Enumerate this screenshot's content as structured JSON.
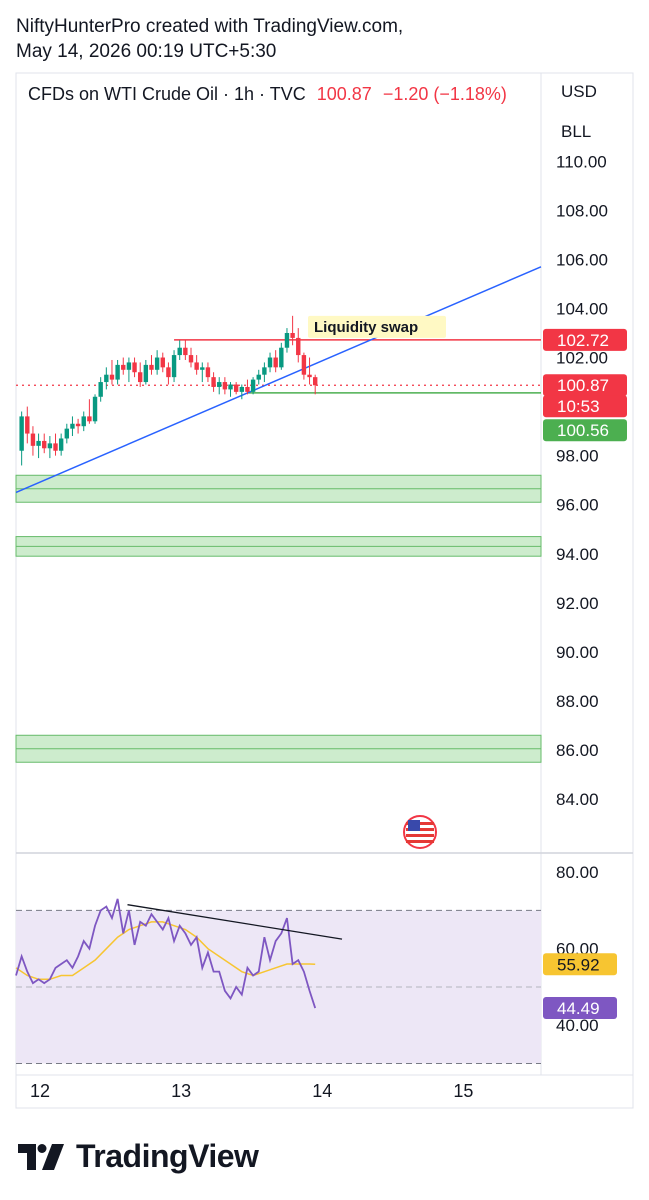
{
  "header": {
    "line1": "NiftyHunterPro created with TradingView.com,",
    "line2": "May 14, 2026 00:19 UTC+5:30"
  },
  "symbol": {
    "name": "CFDs on WTI Crude Oil · 1h · TVC",
    "price": "100.87",
    "change": "−1.20 (−1.18%)"
  },
  "currency": {
    "code": "USD",
    "unit": "BLL"
  },
  "footer": {
    "brand": "TradingView"
  },
  "colors": {
    "up": "#089981",
    "down": "#f23645",
    "trend": "#2962ff",
    "zone_fill": "#cdeccd",
    "zone_line": "#66bb6a",
    "rsi": "#7e57c2",
    "rsi_ma": "#f7c531",
    "rsi_band": "#ede7f6"
  },
  "chart_data": [
    {
      "type": "candlestick",
      "title": "CFDs on WTI Crude Oil · 1h · TVC",
      "y_ticks": [
        "110.00",
        "108.00",
        "106.00",
        "104.00",
        "102.00",
        "98.00",
        "96.00",
        "94.00",
        "92.00",
        "90.00",
        "88.00",
        "86.00",
        "84.00"
      ],
      "ylim": [
        81.8,
        113.6
      ],
      "x_ticks": [
        "12",
        "13",
        "14",
        "15"
      ],
      "x_tick_values": [
        12,
        13,
        14,
        15
      ],
      "xlim": [
        11.83,
        15.55
      ],
      "candles": [
        {
          "x": 11.87,
          "o": 98.2,
          "h": 99.8,
          "l": 97.6,
          "c": 99.6
        },
        {
          "x": 11.91,
          "o": 99.6,
          "h": 100.0,
          "l": 98.5,
          "c": 98.9
        },
        {
          "x": 11.95,
          "o": 98.9,
          "h": 99.2,
          "l": 98.0,
          "c": 98.4
        },
        {
          "x": 11.99,
          "o": 98.4,
          "h": 98.9,
          "l": 97.9,
          "c": 98.6
        },
        {
          "x": 12.03,
          "o": 98.6,
          "h": 98.9,
          "l": 98.1,
          "c": 98.3
        },
        {
          "x": 12.07,
          "o": 98.3,
          "h": 98.8,
          "l": 97.9,
          "c": 98.5
        },
        {
          "x": 12.11,
          "o": 98.5,
          "h": 98.9,
          "l": 98.0,
          "c": 98.2
        },
        {
          "x": 12.15,
          "o": 98.2,
          "h": 98.9,
          "l": 98.0,
          "c": 98.7
        },
        {
          "x": 12.19,
          "o": 98.7,
          "h": 99.3,
          "l": 98.5,
          "c": 99.1
        },
        {
          "x": 12.23,
          "o": 99.1,
          "h": 99.6,
          "l": 98.8,
          "c": 99.3
        },
        {
          "x": 12.27,
          "o": 99.3,
          "h": 99.5,
          "l": 98.9,
          "c": 99.2
        },
        {
          "x": 12.31,
          "o": 99.2,
          "h": 99.8,
          "l": 99.0,
          "c": 99.6
        },
        {
          "x": 12.35,
          "o": 99.6,
          "h": 100.3,
          "l": 99.3,
          "c": 99.4
        },
        {
          "x": 12.39,
          "o": 99.4,
          "h": 100.5,
          "l": 99.3,
          "c": 100.4
        },
        {
          "x": 12.43,
          "o": 100.4,
          "h": 101.2,
          "l": 100.2,
          "c": 101.0
        },
        {
          "x": 12.47,
          "o": 101.0,
          "h": 101.6,
          "l": 100.7,
          "c": 101.3
        },
        {
          "x": 12.51,
          "o": 101.3,
          "h": 101.9,
          "l": 100.9,
          "c": 101.1
        },
        {
          "x": 12.55,
          "o": 101.1,
          "h": 101.9,
          "l": 100.9,
          "c": 101.7
        },
        {
          "x": 12.59,
          "o": 101.7,
          "h": 102.0,
          "l": 101.3,
          "c": 101.5
        },
        {
          "x": 12.63,
          "o": 101.5,
          "h": 102.0,
          "l": 101.0,
          "c": 101.8
        },
        {
          "x": 12.67,
          "o": 101.8,
          "h": 102.0,
          "l": 101.2,
          "c": 101.4
        },
        {
          "x": 12.71,
          "o": 101.4,
          "h": 101.8,
          "l": 100.8,
          "c": 101.0
        },
        {
          "x": 12.75,
          "o": 101.0,
          "h": 101.9,
          "l": 100.9,
          "c": 101.7
        },
        {
          "x": 12.79,
          "o": 101.7,
          "h": 102.1,
          "l": 101.3,
          "c": 101.5
        },
        {
          "x": 12.83,
          "o": 101.5,
          "h": 102.3,
          "l": 101.3,
          "c": 102.0
        },
        {
          "x": 12.87,
          "o": 102.0,
          "h": 102.2,
          "l": 101.4,
          "c": 101.6
        },
        {
          "x": 12.91,
          "o": 101.6,
          "h": 101.8,
          "l": 100.9,
          "c": 101.2
        },
        {
          "x": 12.95,
          "o": 101.2,
          "h": 102.3,
          "l": 101.0,
          "c": 102.1
        },
        {
          "x": 12.99,
          "o": 102.1,
          "h": 102.7,
          "l": 101.9,
          "c": 102.4
        },
        {
          "x": 13.03,
          "o": 102.4,
          "h": 102.7,
          "l": 101.9,
          "c": 102.1
        },
        {
          "x": 13.07,
          "o": 102.1,
          "h": 102.4,
          "l": 101.6,
          "c": 101.8
        },
        {
          "x": 13.11,
          "o": 101.8,
          "h": 102.1,
          "l": 101.3,
          "c": 101.5
        },
        {
          "x": 13.15,
          "o": 101.5,
          "h": 101.8,
          "l": 101.0,
          "c": 101.6
        },
        {
          "x": 13.19,
          "o": 101.6,
          "h": 101.8,
          "l": 101.0,
          "c": 101.2
        },
        {
          "x": 13.23,
          "o": 101.2,
          "h": 101.4,
          "l": 100.6,
          "c": 100.8
        },
        {
          "x": 13.27,
          "o": 100.8,
          "h": 101.2,
          "l": 100.5,
          "c": 101.0
        },
        {
          "x": 13.31,
          "o": 101.0,
          "h": 101.2,
          "l": 100.5,
          "c": 100.7
        },
        {
          "x": 13.35,
          "o": 100.7,
          "h": 101.0,
          "l": 100.4,
          "c": 100.9
        },
        {
          "x": 13.39,
          "o": 100.9,
          "h": 101.0,
          "l": 100.5,
          "c": 100.6
        },
        {
          "x": 13.43,
          "o": 100.6,
          "h": 100.9,
          "l": 100.3,
          "c": 100.8
        },
        {
          "x": 13.47,
          "o": 100.8,
          "h": 101.1,
          "l": 100.5,
          "c": 100.6
        },
        {
          "x": 13.51,
          "o": 100.6,
          "h": 101.2,
          "l": 100.5,
          "c": 101.1
        },
        {
          "x": 13.55,
          "o": 101.1,
          "h": 101.5,
          "l": 100.9,
          "c": 101.3
        },
        {
          "x": 13.59,
          "o": 101.3,
          "h": 101.8,
          "l": 101.0,
          "c": 101.6
        },
        {
          "x": 13.63,
          "o": 101.6,
          "h": 102.2,
          "l": 101.4,
          "c": 102.0
        },
        {
          "x": 13.67,
          "o": 102.0,
          "h": 102.3,
          "l": 101.4,
          "c": 101.6
        },
        {
          "x": 13.71,
          "o": 101.6,
          "h": 102.6,
          "l": 101.5,
          "c": 102.4
        },
        {
          "x": 13.75,
          "o": 102.4,
          "h": 103.2,
          "l": 102.2,
          "c": 103.0
        },
        {
          "x": 13.79,
          "o": 103.0,
          "h": 103.7,
          "l": 102.5,
          "c": 102.8
        },
        {
          "x": 13.83,
          "o": 102.8,
          "h": 103.2,
          "l": 101.8,
          "c": 102.1
        },
        {
          "x": 13.87,
          "o": 102.1,
          "h": 102.2,
          "l": 101.1,
          "c": 101.3
        },
        {
          "x": 13.91,
          "o": 101.3,
          "h": 102.0,
          "l": 100.9,
          "c": 101.2
        },
        {
          "x": 13.95,
          "o": 101.2,
          "h": 101.3,
          "l": 100.5,
          "c": 100.87
        }
      ],
      "trendline": {
        "x": [
          11.83,
          15.55
        ],
        "y": [
          96.5,
          105.7
        ]
      },
      "resistance": {
        "value": 102.72,
        "x_start": 12.95,
        "annotation": "Liquidity swap"
      },
      "support": {
        "value": 100.56,
        "x_start": 13.47
      },
      "last_price": 100.87,
      "demand_zones": [
        [
          96.1,
          97.2
        ],
        [
          93.9,
          94.7
        ],
        [
          85.5,
          86.6
        ]
      ],
      "price_labels": [
        {
          "text": "102.72",
          "value": 102.72,
          "kind": "resistance"
        },
        {
          "text": "100.87",
          "value": 100.87,
          "kind": "last"
        },
        {
          "text": "10:53",
          "value": 100.87,
          "kind": "countdown"
        },
        {
          "text": "100.56",
          "value": 100.56,
          "kind": "support"
        }
      ]
    },
    {
      "type": "line",
      "panel": "RSI",
      "y_ticks": [
        "80.00",
        "60.00",
        "40.00"
      ],
      "ylim": [
        27,
        85
      ],
      "bands": [
        30,
        70
      ],
      "midline": 50,
      "series": [
        {
          "kind": "rsi",
          "x": [
            11.83,
            11.87,
            11.91,
            11.95,
            11.99,
            12.03,
            12.07,
            12.11,
            12.15,
            12.19,
            12.23,
            12.27,
            12.31,
            12.35,
            12.39,
            12.43,
            12.47,
            12.51,
            12.55,
            12.59,
            12.63,
            12.67,
            12.71,
            12.75,
            12.79,
            12.83,
            12.87,
            12.91,
            12.95,
            12.99,
            13.03,
            13.07,
            13.11,
            13.15,
            13.19,
            13.23,
            13.27,
            13.31,
            13.35,
            13.39,
            13.43,
            13.47,
            13.51,
            13.55,
            13.59,
            13.63,
            13.67,
            13.71,
            13.75,
            13.79,
            13.83,
            13.87,
            13.91,
            13.95
          ],
          "values": [
            53,
            58,
            54,
            51,
            52,
            51,
            52,
            55,
            56,
            57,
            55,
            58,
            62,
            60,
            66,
            70,
            71,
            68,
            73,
            64,
            70,
            61,
            67,
            66,
            69,
            67,
            65,
            68,
            62,
            66,
            64,
            61,
            63,
            55,
            59,
            54,
            54,
            49,
            47,
            50,
            48,
            55,
            53,
            54,
            63,
            57,
            62,
            64,
            68,
            56,
            57,
            54,
            49,
            44.49
          ]
        },
        {
          "kind": "rsi_ma",
          "x": [
            11.83,
            11.91,
            11.99,
            12.07,
            12.15,
            12.23,
            12.31,
            12.39,
            12.47,
            12.55,
            12.63,
            12.71,
            12.79,
            12.87,
            12.95,
            13.03,
            13.11,
            13.19,
            13.27,
            13.35,
            13.43,
            13.51,
            13.59,
            13.67,
            13.75,
            13.83,
            13.91,
            13.95
          ],
          "values": [
            55,
            53,
            52,
            52,
            53,
            53,
            55,
            57,
            60,
            63,
            65,
            66,
            67,
            67,
            66,
            65,
            63,
            60,
            58,
            56,
            54,
            53,
            54,
            55,
            56,
            56,
            56,
            55.92
          ]
        }
      ],
      "divergence_line": {
        "x": [
          12.62,
          14.14
        ],
        "y": [
          71.5,
          62.5
        ]
      },
      "value_labels": [
        {
          "text": "55.92",
          "value": 55.92,
          "kind": "rsi_ma"
        },
        {
          "text": "44.49",
          "value": 44.49,
          "kind": "rsi"
        }
      ]
    }
  ]
}
